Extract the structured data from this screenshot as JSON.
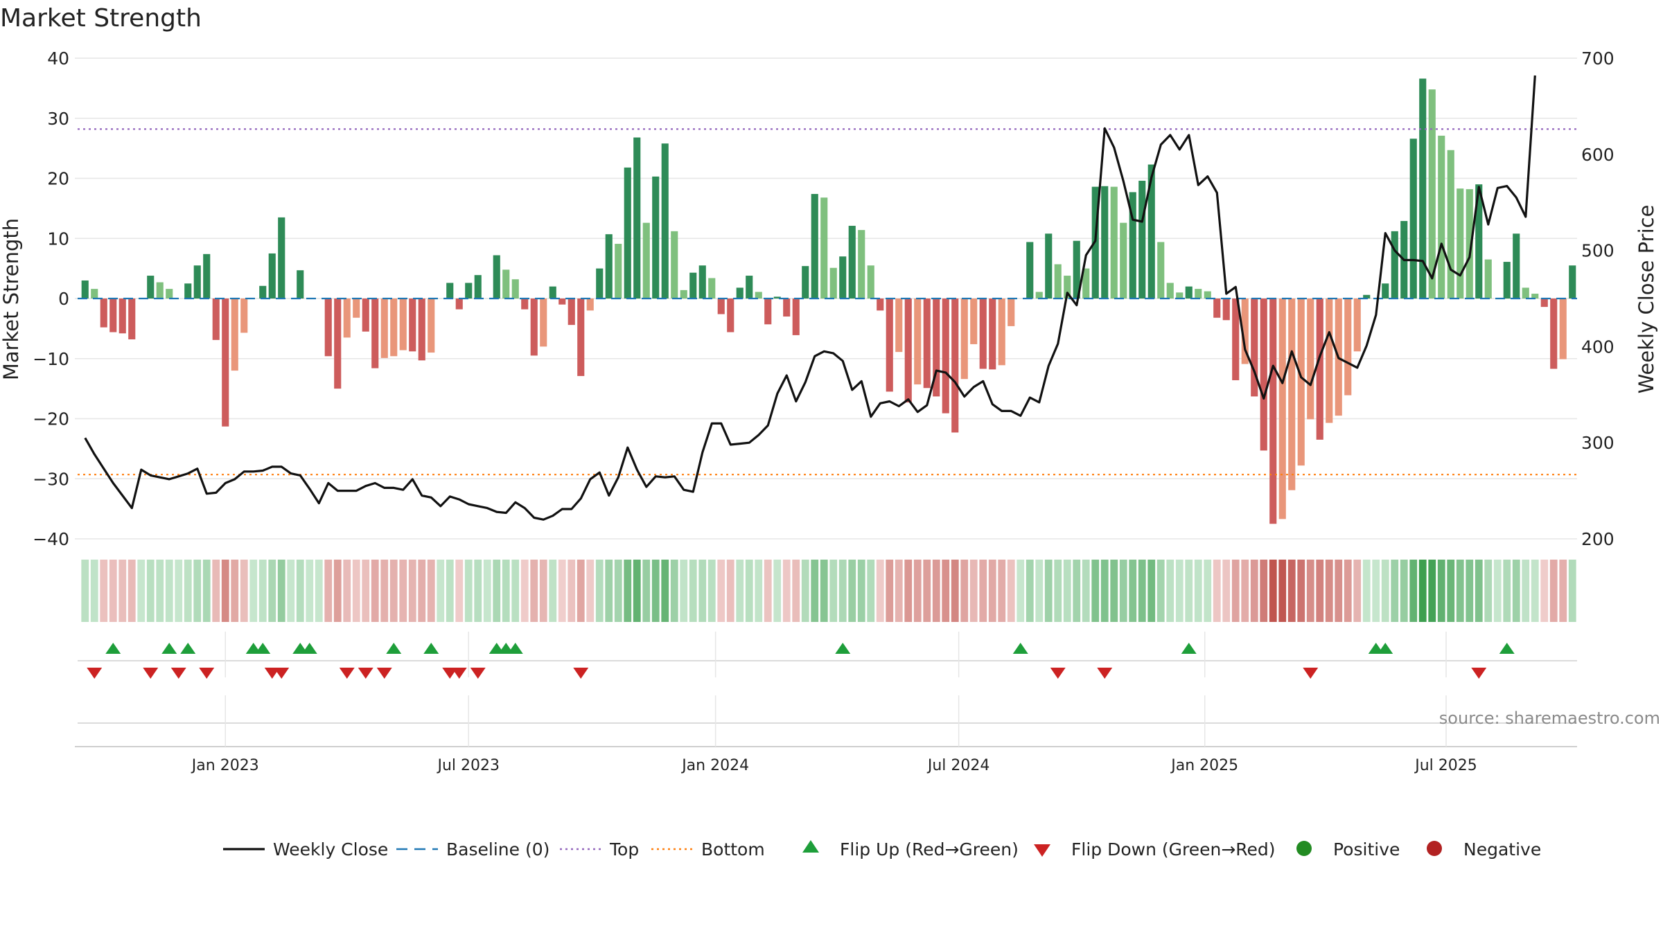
{
  "chart_data": {
    "type": "bar",
    "title": "Market Strength",
    "ylabel": "Market Strength",
    "y2label": "Weekly Close Price",
    "ylim": [
      -40,
      40
    ],
    "y2lim": [
      200,
      700
    ],
    "yticks": [
      40,
      30,
      20,
      10,
      0,
      -10,
      -20,
      -30,
      -40
    ],
    "yticklabels": [
      "40",
      "30",
      "20",
      "10",
      "0",
      "−10",
      "−20",
      "−30",
      "−40"
    ],
    "y2ticks": [
      700,
      600,
      500,
      400,
      300,
      200
    ],
    "top_line": 28.2,
    "bottom_line": -29.3,
    "baseline": 0,
    "x_ticks": [
      {
        "label": "Jan 2023",
        "index": 15
      },
      {
        "label": "Jul 2023",
        "index": 41
      },
      {
        "label": "Jan 2024",
        "index": 67.4
      },
      {
        "label": "Jul 2024",
        "index": 93.4
      },
      {
        "label": "Jan 2025",
        "index": 119.7
      },
      {
        "label": "Jul 2025",
        "index": 145.5
      }
    ],
    "strength": [
      3,
      1.6,
      -4.8,
      -5.6,
      -5.8,
      -6.8,
      0,
      3.8,
      2.7,
      1.6,
      0,
      2.5,
      5.5,
      7.4,
      -6.9,
      -21.3,
      -12,
      -5.7,
      0,
      2.1,
      7.5,
      13.5,
      0,
      4.7,
      0,
      0,
      -9.6,
      -15,
      -6.5,
      -3.2,
      -5.5,
      -11.6,
      -9.9,
      -9.6,
      -8.6,
      -8.8,
      -10.3,
      -9,
      0,
      2.6,
      -1.8,
      2.6,
      3.9,
      0,
      7.2,
      4.8,
      3.2,
      -1.8,
      -9.5,
      -8,
      2,
      -1,
      -4.4,
      -12.9,
      -2,
      5,
      10.7,
      9.1,
      21.8,
      26.8,
      12.6,
      20.3,
      25.8,
      11.2,
      1.4,
      4.3,
      5.5,
      3.4,
      -2.6,
      -5.6,
      1.8,
      3.8,
      1.1,
      -4.3,
      0.3,
      -3,
      -6.1,
      5.4,
      17.4,
      16.8,
      5.1,
      7,
      12.1,
      11.4,
      5.5,
      -2,
      -15.5,
      -8.9,
      -17.3,
      -14.3,
      -14.9,
      -16.3,
      -19.1,
      -22.3,
      -13.4,
      -7.6,
      -11.7,
      -11.8,
      -11.1,
      -4.6,
      0,
      9.4,
      1.1,
      10.8,
      5.7,
      3.8,
      9.6,
      5,
      18.6,
      18.7,
      18.6,
      12.6,
      17.7,
      19.6,
      22.3,
      9.4,
      2.6,
      1,
      2,
      1.6,
      1.2,
      -3.2,
      -3.6,
      -13.6,
      -10.9,
      -16.3,
      -25.3,
      -37.5,
      -36.7,
      -31.9,
      -27.8,
      -20.1,
      -23.5,
      -20.7,
      -19.5,
      -16.1,
      -8.8,
      0.6,
      0,
      2.5,
      11.2,
      12.9,
      26.6,
      36.6,
      34.8,
      27.1,
      24.7,
      18.3,
      18.2,
      19,
      6.5,
      0,
      6.1,
      10.8,
      1.8,
      0.8,
      -1.4,
      -11.7,
      -10.1,
      5.5
    ],
    "price": [
      305,
      288,
      273,
      258,
      245,
      232,
      272,
      266,
      264,
      262,
      265,
      268,
      273,
      247,
      248,
      258,
      262,
      270,
      270,
      271,
      275,
      275,
      268,
      266,
      252,
      237,
      258,
      250,
      250,
      250,
      255,
      258,
      253,
      253,
      251,
      262,
      245,
      243,
      234,
      244,
      241,
      236,
      234,
      232,
      228,
      227,
      238,
      232,
      222,
      220,
      224,
      231,
      231,
      242,
      262,
      269,
      245,
      264,
      295,
      272,
      254,
      265,
      264,
      265,
      251,
      249,
      290,
      320,
      320,
      298,
      299,
      300,
      308,
      318,
      351,
      370,
      343,
      363,
      390,
      395,
      393,
      385,
      355,
      364,
      327,
      341,
      343,
      338,
      345,
      332,
      339,
      375,
      373,
      363,
      348,
      358,
      364,
      340,
      333,
      333,
      328,
      347,
      342,
      380,
      403,
      456,
      443,
      495,
      510,
      627,
      607,
      572,
      532,
      530,
      576,
      610,
      620,
      605,
      620,
      568,
      577,
      560,
      455,
      462,
      397,
      374,
      346,
      380,
      362,
      395,
      368,
      360,
      390,
      415,
      388,
      383,
      378,
      401,
      433,
      518,
      500,
      490,
      490,
      489,
      471,
      507,
      480,
      474,
      493,
      566,
      527,
      565,
      567,
      555,
      535,
      682
    ],
    "flip_up_indices": [
      3,
      9,
      11,
      18,
      19,
      23,
      24,
      33,
      37,
      44,
      45,
      46,
      81,
      100,
      118,
      138,
      139,
      152
    ],
    "flip_down_indices": [
      1,
      7,
      10,
      13,
      20,
      21,
      28,
      30,
      32,
      39,
      40,
      42,
      53,
      104,
      109,
      131,
      149
    ],
    "heat_colors": {
      "positive_strong": "#3c9e4e",
      "positive_weak": "#c6e6cd",
      "negative_strong": "#c0554f",
      "negative_weak": "#f1d1cf"
    },
    "colors": {
      "green_new": "#2e8b57",
      "green_fading": "#7fc07e",
      "red_new": "#cd5c5c",
      "red_fading": "#e9967a",
      "price_line": "#111111",
      "baseline": "#1f77b4",
      "top": "#9467bd",
      "bottom": "#ff7f0e",
      "flip_up": "#1e9e3a",
      "flip_down": "#cc2222",
      "positive": "#228b22",
      "negative": "#b22222"
    },
    "source": "source: sharemaestro.com",
    "legend": [
      {
        "label": "Weekly Close",
        "marker": "line",
        "icon": "solid-line-icon"
      },
      {
        "label": "Baseline (0)",
        "marker": "dash",
        "icon": "dash-line-icon"
      },
      {
        "label": "Top",
        "marker": "dot",
        "icon": "dotted-line-icon"
      },
      {
        "label": "Bottom",
        "marker": "dot-orange",
        "icon": "dotted-line-icon"
      },
      {
        "label": "Flip Up (Red→Green)",
        "marker": "triangle-up",
        "icon": "triangle-up-icon"
      },
      {
        "label": "Flip Down (Green→Red)",
        "marker": "triangle-down",
        "icon": "triangle-down-icon"
      },
      {
        "label": "Positive",
        "marker": "circle-green",
        "icon": "circle-icon"
      },
      {
        "label": "Negative",
        "marker": "circle-red",
        "icon": "circle-icon"
      }
    ]
  }
}
